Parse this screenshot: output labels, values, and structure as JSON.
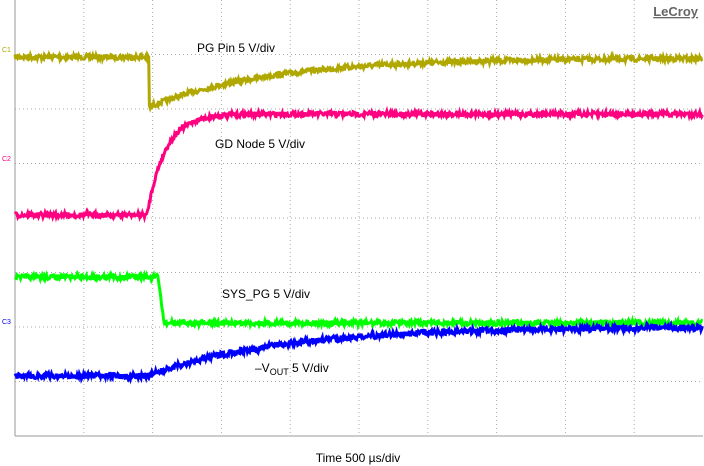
{
  "brand": "LeCroy",
  "traces": [
    {
      "label": "PG Pin 5 V/div",
      "marker": "C1"
    },
    {
      "label": "GD Node 5 V/div",
      "marker": "C2"
    },
    {
      "label": "SYS_PG 5 V/div"
    },
    {
      "label_main": "–V",
      "label_sub": "OUT",
      "label_rest": " 5 V/div",
      "marker": "C3"
    }
  ],
  "timebase": "Time 500 µs/div"
}
